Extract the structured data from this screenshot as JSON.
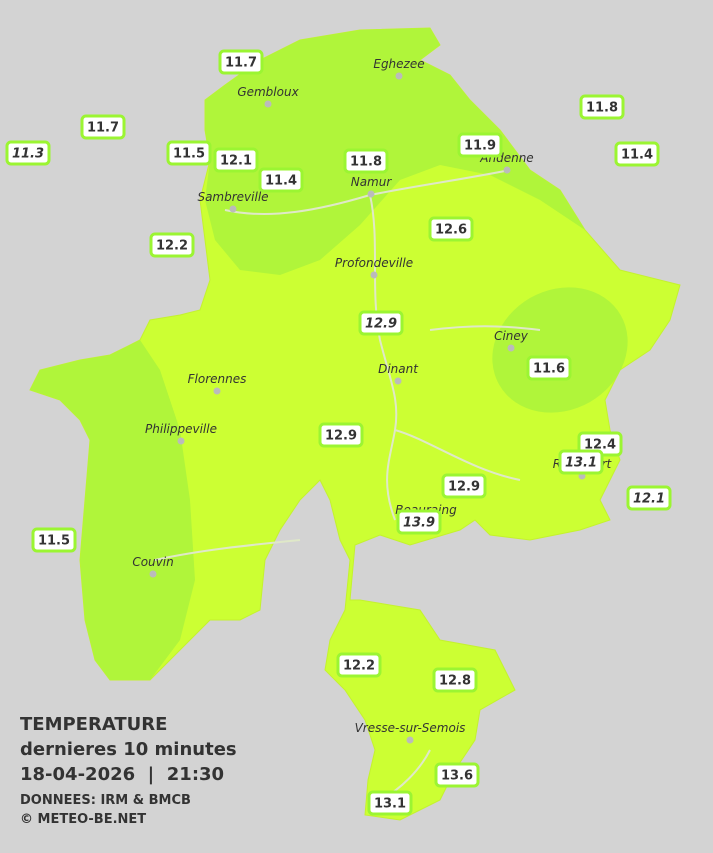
{
  "legend": {
    "title": "TEMPERATURE",
    "subtitle": "dernieres 10 minutes",
    "datetime": "18-04-2026  |  21:30",
    "source": "DONNEES: IRM & BMCB",
    "copyright": "© METEO-BE.NET"
  },
  "cities": [
    "Gembloux",
    "Eghezee",
    "Andenne",
    "Namur",
    "Sambreville",
    "Profondeville",
    "Ciney",
    "Dinant",
    "Florennes",
    "Philippeville",
    "Rochefort",
    "Beauraing",
    "Couvin",
    "Vresse-sur-Semois"
  ],
  "stations": [
    11.7,
    11.7,
    11.3,
    11.5,
    12.1,
    11.4,
    11.8,
    11.9,
    11.8,
    11.4,
    12.2,
    12.6,
    12.9,
    11.6,
    12.9,
    12.4,
    13.1,
    12.1,
    12.9,
    13.9,
    11.5,
    12.2,
    12.8,
    13.6,
    13.1
  ]
}
